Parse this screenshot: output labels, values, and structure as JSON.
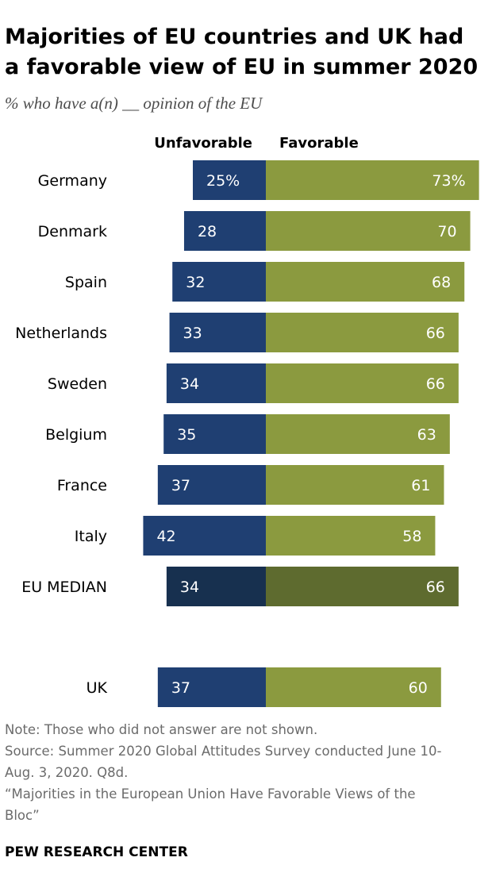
{
  "title": "Majorities of EU countries and UK had a favorable view of EU in summer 2020",
  "subtitle": "% who have a(n) __ opinion of the EU",
  "colors": {
    "unfavorable": "#1f3f72",
    "favorable": "#8b9a3f",
    "unfavorable_median": "#17304f",
    "favorable_median": "#5e6b2f"
  },
  "chart_data": {
    "type": "bar",
    "orientation": "diverging-horizontal",
    "categories": [
      "Germany",
      "Denmark",
      "Spain",
      "Netherlands",
      "Sweden",
      "Belgium",
      "France",
      "Italy",
      "EU MEDIAN",
      "UK"
    ],
    "series": [
      {
        "name": "Unfavorable",
        "values": [
          25,
          28,
          32,
          33,
          34,
          35,
          37,
          42,
          34,
          37
        ],
        "labels": [
          "25%",
          "28",
          "32",
          "33",
          "34",
          "35",
          "37",
          "42",
          "34",
          "37"
        ]
      },
      {
        "name": "Favorable",
        "values": [
          73,
          70,
          68,
          66,
          66,
          63,
          61,
          58,
          66,
          60
        ],
        "labels": [
          "73%",
          "70",
          "68",
          "66",
          "66",
          "63",
          "61",
          "58",
          "66",
          "60"
        ]
      }
    ],
    "highlighted_category": "EU MEDIAN",
    "legend": "top, above each side of bars"
  },
  "notes": {
    "note": "Note: Those who did not answer are not shown.",
    "source_line1": "Source: Summer 2020 Global Attitudes Survey conducted June 10-",
    "source_line2": "Aug. 3, 2020. Q8d.",
    "report_line1": "“Majorities in the European Union Have Favorable Views of the",
    "report_line2": "Bloc”"
  },
  "brand": "PEW RESEARCH CENTER"
}
